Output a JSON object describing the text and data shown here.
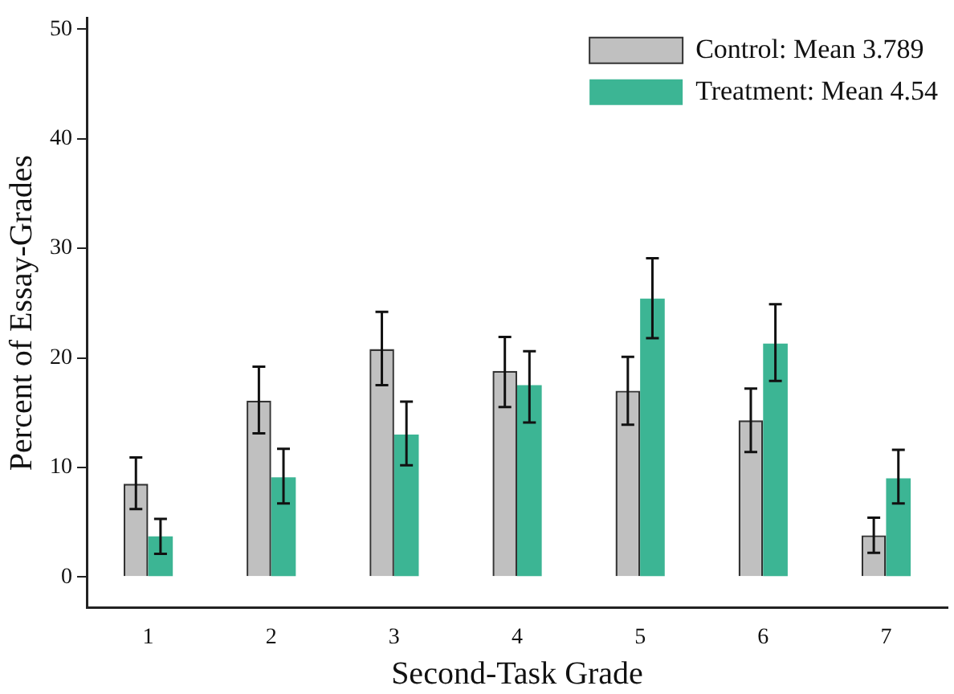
{
  "chart_data": {
    "type": "bar",
    "xlabel": "Second-Task Grade",
    "ylabel": "Percent of Essay-Grades",
    "categories": [
      "1",
      "2",
      "3",
      "4",
      "5",
      "6",
      "7"
    ],
    "series": [
      {
        "name": "Control: Mean 3.789",
        "color": "#c0c0c0",
        "values": [
          8.5,
          16.1,
          20.8,
          18.8,
          17.0,
          14.3,
          3.8
        ],
        "errors": [
          [
            6.2,
            10.9
          ],
          [
            13.1,
            19.2
          ],
          [
            17.5,
            24.2
          ],
          [
            15.5,
            21.9
          ],
          [
            13.9,
            20.1
          ],
          [
            11.4,
            17.2
          ],
          [
            2.2,
            5.4
          ]
        ]
      },
      {
        "name": "Treatment: Mean 4.54",
        "color": "#3cb594",
        "values": [
          3.7,
          9.1,
          13.0,
          17.5,
          25.4,
          21.3,
          9.0
        ],
        "errors": [
          [
            2.1,
            5.3
          ],
          [
            6.7,
            11.7
          ],
          [
            10.2,
            16.0
          ],
          [
            14.1,
            20.6
          ],
          [
            21.8,
            29.1
          ],
          [
            17.9,
            24.9
          ],
          [
            6.7,
            11.6
          ]
        ]
      }
    ],
    "ylim": [
      -2.8,
      51
    ],
    "yticks": [
      0,
      10,
      20,
      30,
      40,
      50
    ],
    "grid": false,
    "legend": "top right"
  }
}
